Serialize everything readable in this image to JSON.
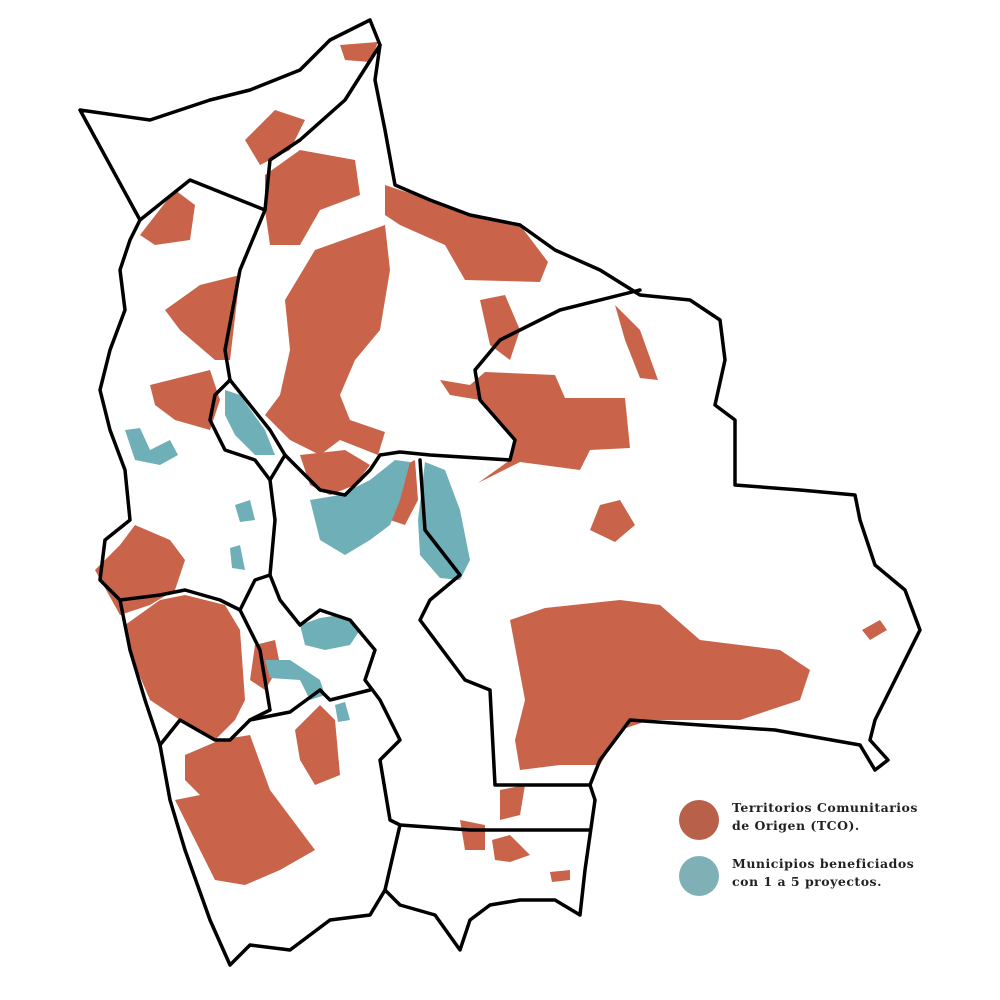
{
  "legend": {
    "items": [
      {
        "lines": [
          "Territorios Comunitarios",
          "de Origen (TCO)."
        ]
      },
      {
        "lines": [
          "Municipios beneficiados",
          "con 1 a 5 proyectos."
        ]
      }
    ]
  }
}
